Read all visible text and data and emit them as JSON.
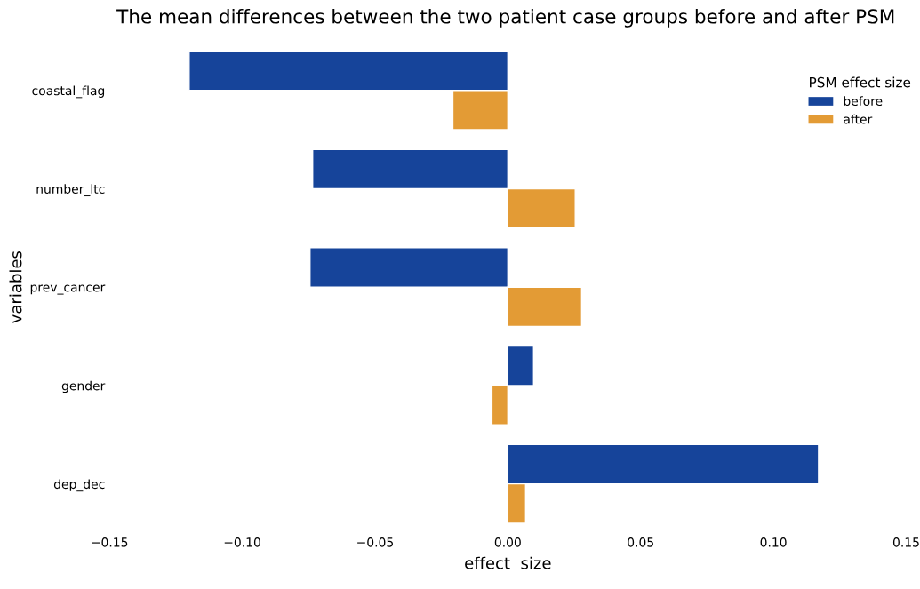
{
  "chart_data": {
    "type": "bar",
    "orientation": "horizontal",
    "title": "The mean differences between the two patient case groups before and after PSM",
    "xlabel": "effect  size",
    "ylabel": "variables",
    "legend_title": "PSM effect size",
    "categories": [
      "coastal_flag",
      "number_ltc",
      "prev_cancer",
      "gender",
      "dep_dec"
    ],
    "series": [
      {
        "name": "before",
        "color": "#16449a",
        "values": [
          -0.12,
          -0.0735,
          -0.0745,
          0.0097,
          0.117
        ]
      },
      {
        "name": "after",
        "color": "#e39b35",
        "values": [
          -0.0207,
          0.0254,
          0.0278,
          -0.006,
          0.0067
        ]
      }
    ],
    "xlim": [
      -0.15,
      0.15
    ],
    "xticks": [
      {
        "value": -0.15,
        "label": "−0.15"
      },
      {
        "value": -0.1,
        "label": "−0.10"
      },
      {
        "value": -0.05,
        "label": "−0.05"
      },
      {
        "value": 0,
        "label": "0.00"
      },
      {
        "value": 0.05,
        "label": "0.05"
      },
      {
        "value": 0.1,
        "label": "0.10"
      },
      {
        "value": 0.15,
        "label": "0.15"
      }
    ],
    "grid": false,
    "legend": "top right"
  }
}
